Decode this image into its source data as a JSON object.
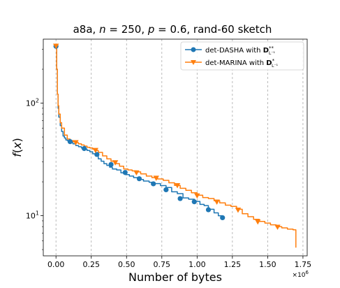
{
  "chart_data": {
    "type": "line",
    "title": {
      "dataset": "a8a",
      "n_label": "n",
      "n_value": "250",
      "p_label": "p",
      "p_value": "0.6",
      "sketch": "rand-60 sketch"
    },
    "xlabel": "Number of bytes",
    "ylabel_fn": "f",
    "ylabel_arg": "x",
    "x_multiplier": {
      "base": "×10",
      "exp": "6"
    },
    "xlim": [
      -0.09,
      1.78
    ],
    "ylim": [
      4.4,
      370
    ],
    "yscale": "log",
    "x_ticks": [
      0.0,
      0.25,
      0.5,
      0.75,
      1.0,
      1.25,
      1.5,
      1.75
    ],
    "x_tick_labels": [
      "0.00",
      "0.25",
      "0.50",
      "0.75",
      "1.00",
      "1.25",
      "1.50",
      "1.75"
    ],
    "y_major_ticks": [
      10,
      100
    ],
    "y_tick_labels": [
      {
        "base": "10",
        "exp": "1"
      },
      {
        "base": "10",
        "exp": "2"
      }
    ],
    "grid": "vertical dashed at x ticks",
    "legend_position": "top-right",
    "series": [
      {
        "name": {
          "prefix": "det-DASHA with ",
          "sym": "D",
          "sup": "**",
          "sub": "L⁻¹"
        },
        "color": "#1f77b4",
        "marker": "circle",
        "x": [
          0.0,
          0.005,
          0.01,
          0.015,
          0.02,
          0.03,
          0.04,
          0.05,
          0.06,
          0.07,
          0.08,
          0.09,
          0.1,
          0.12,
          0.14,
          0.16,
          0.18,
          0.2,
          0.22,
          0.24,
          0.26,
          0.28,
          0.3,
          0.32,
          0.34,
          0.36,
          0.38,
          0.4,
          0.43,
          0.46,
          0.49,
          0.52,
          0.55,
          0.58,
          0.62,
          0.66,
          0.7,
          0.74,
          0.78,
          0.82,
          0.86,
          0.9,
          0.94,
          0.98,
          1.02,
          1.05,
          1.08,
          1.12,
          1.15,
          1.18
        ],
        "y": [
          320,
          200,
          120,
          90,
          75,
          63,
          56,
          51,
          49,
          47,
          46.5,
          46,
          45,
          43.5,
          42,
          41,
          40,
          39,
          38,
          37,
          35.5,
          34,
          32,
          30.5,
          29,
          28,
          27,
          26,
          25.5,
          24,
          23.2,
          22.5,
          21.8,
          21,
          20.3,
          19.8,
          19.3,
          18.5,
          17.8,
          16.3,
          15.7,
          14.4,
          14.0,
          13.4,
          12.6,
          12.3,
          11.4,
          10.6,
          10.0,
          9.6
        ],
        "marker_x": [
          0.0,
          0.1,
          0.2,
          0.29,
          0.39,
          0.49,
          0.59,
          0.69,
          0.78,
          0.88,
          0.98,
          1.08,
          1.18
        ],
        "marker_y": [
          320,
          45.5,
          39.5,
          35,
          28.5,
          24.2,
          21.3,
          19.2,
          17.0,
          14.2,
          13.3,
          11.3,
          9.6
        ]
      },
      {
        "name": {
          "prefix": "det-MARINA with ",
          "sym": "D",
          "sup": "*",
          "sub": "L⁻¹"
        },
        "color": "#ff7f0e",
        "marker": "triangle-down",
        "x": [
          0.0,
          0.005,
          0.01,
          0.015,
          0.02,
          0.03,
          0.04,
          0.06,
          0.08,
          0.1,
          0.12,
          0.14,
          0.16,
          0.18,
          0.2,
          0.22,
          0.24,
          0.26,
          0.28,
          0.3,
          0.33,
          0.36,
          0.39,
          0.42,
          0.45,
          0.48,
          0.51,
          0.54,
          0.57,
          0.6,
          0.64,
          0.68,
          0.72,
          0.76,
          0.8,
          0.84,
          0.88,
          0.92,
          0.96,
          1.0,
          1.04,
          1.08,
          1.12,
          1.16,
          1.2,
          1.24,
          1.28,
          1.32,
          1.36,
          1.4,
          1.44,
          1.48,
          1.52,
          1.56,
          1.6,
          1.64,
          1.68,
          1.7
        ],
        "y": [
          320,
          200,
          120,
          95,
          80,
          67,
          60,
          52,
          48,
          46.5,
          45.5,
          44.5,
          43.5,
          42.5,
          41.5,
          40.5,
          40,
          39,
          38,
          36.5,
          34,
          32,
          30.5,
          29,
          27.5,
          26,
          25.5,
          25,
          24.5,
          23.5,
          22.5,
          21.8,
          21.2,
          20.6,
          19.6,
          18.6,
          17.5,
          16.8,
          16.0,
          15.2,
          14.5,
          14.2,
          13.6,
          13.0,
          12.4,
          12.1,
          11.4,
          10.4,
          9.8,
          9.3,
          8.9,
          8.6,
          8.3,
          8.0,
          7.8,
          7.6,
          7.5,
          5.2
        ],
        "marker_x": [
          0.0,
          0.14,
          0.28,
          0.42,
          0.57,
          0.71,
          0.86,
          1.0,
          1.14,
          1.29,
          1.43,
          1.57
        ],
        "marker_y": [
          320,
          44.5,
          38,
          29.5,
          24,
          21.5,
          18.5,
          15.0,
          13.2,
          11.2,
          8.8,
          7.9
        ]
      }
    ]
  }
}
